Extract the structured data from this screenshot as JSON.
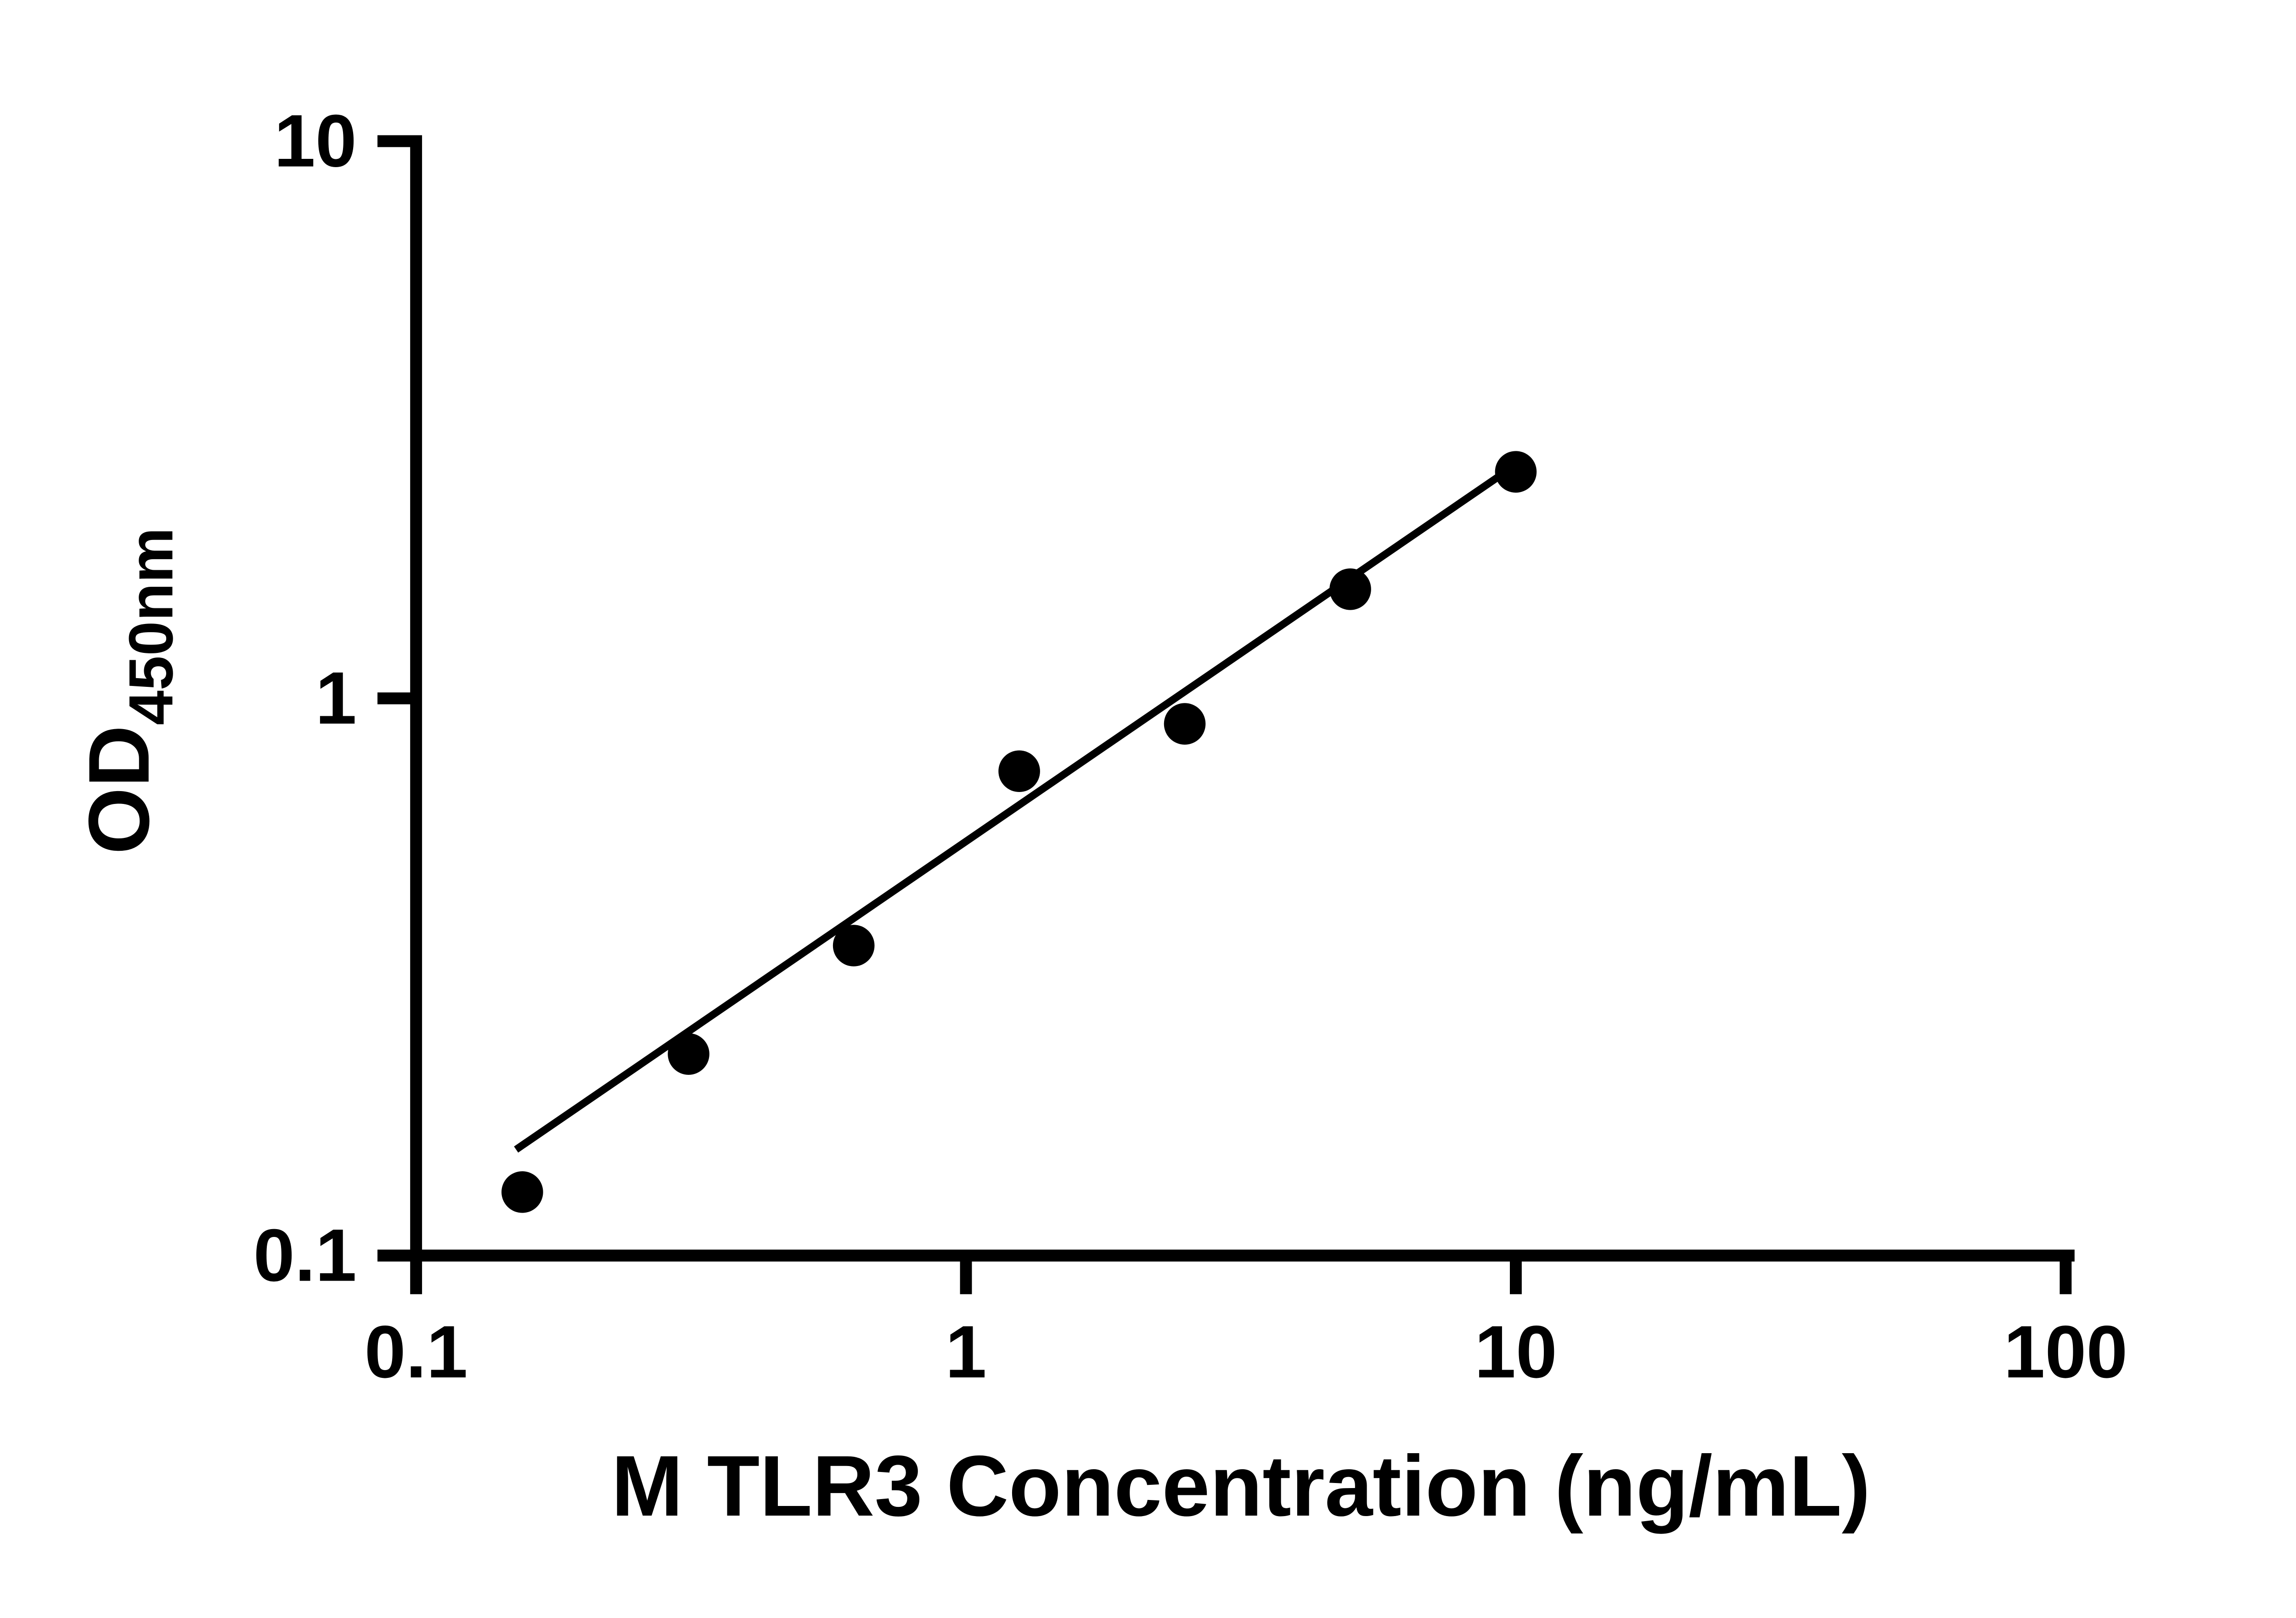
{
  "chart_data": {
    "type": "scatter",
    "title": "",
    "xlabel": "M TLR3 Concentration (ng/mL)",
    "ylabel_main": "OD",
    "ylabel_sub": "450nm",
    "x_scale": "log",
    "y_scale": "log",
    "xlim": [
      0.1,
      100
    ],
    "ylim": [
      0.1,
      10
    ],
    "x_ticks": {
      "values": [
        0.1,
        1,
        10,
        100
      ],
      "labels": [
        "0.1",
        "1",
        "10",
        "100"
      ]
    },
    "y_ticks": {
      "values": [
        0.1,
        1,
        10
      ],
      "labels": [
        "0.1",
        "1",
        "10"
      ]
    },
    "points": {
      "x": [
        0.156,
        0.313,
        0.625,
        1.25,
        2.5,
        5,
        10
      ],
      "y": [
        0.13,
        0.23,
        0.36,
        0.74,
        0.9,
        1.57,
        2.55
      ]
    },
    "trendline": {
      "shape": "straight-line-in-log-log",
      "x1": 0.152,
      "y1": 0.155,
      "x2": 10.2,
      "y2": 2.66
    },
    "legend": "none",
    "grid": false,
    "colors": {
      "points": "#000000",
      "line": "#000000",
      "axis": "#000000",
      "text": "#000000",
      "background": "#ffffff"
    }
  }
}
